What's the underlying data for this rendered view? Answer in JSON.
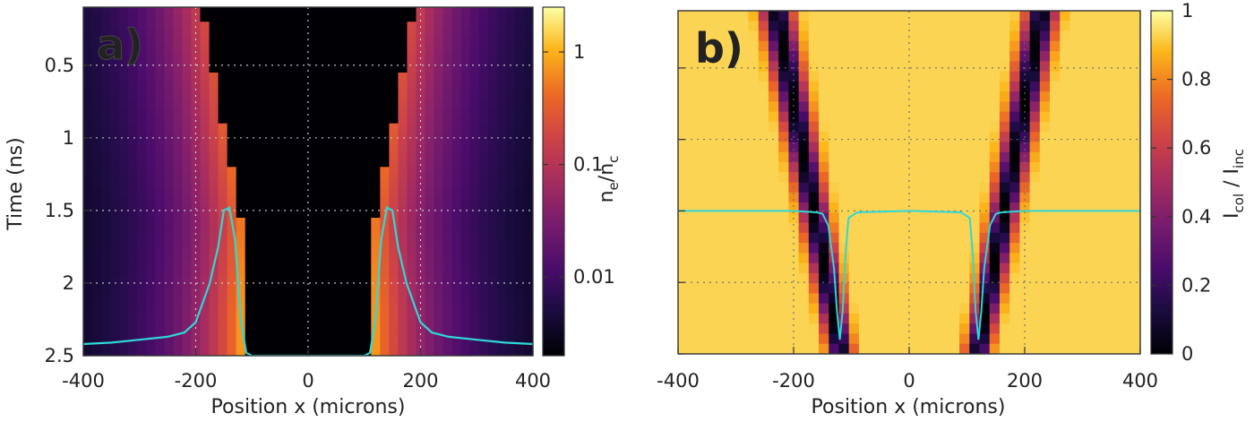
{
  "chart_data": [
    {
      "type": "heatmap",
      "panel_label": "a)",
      "xlabel": "Position x (microns)",
      "ylabel": "Time (ns)",
      "xlim": [
        -400,
        400
      ],
      "ylim": [
        0.1,
        2.5
      ],
      "y_inverted": true,
      "x_ticks": [
        "-400",
        "-200",
        "0",
        "200",
        "400"
      ],
      "x_tick_values": [
        -400,
        -200,
        0,
        200,
        400
      ],
      "y_ticks": [
        "0.5",
        "1",
        "1.5",
        "2",
        "2.5"
      ],
      "y_tick_values": [
        0.5,
        1,
        1.5,
        2,
        2.5
      ],
      "grid": true,
      "colorbar": {
        "label_main": "n",
        "label_sub1": "e",
        "label_mid": "/n",
        "label_sub2": "c",
        "scale": "log",
        "range": [
          0.002,
          2.5
        ],
        "ticks": [
          "1",
          "0.1",
          "0.01"
        ],
        "tick_values": [
          1,
          0.1,
          0.01
        ],
        "colormap": "inferno"
      },
      "front_x_at_t01": 190,
      "front_x_at_t16": 118,
      "line_series": {
        "color": "#2ed8d8",
        "x": [
          -400,
          -350,
          -300,
          -250,
          -220,
          -200,
          -175,
          -160,
          -150,
          -140,
          -130,
          -120,
          -110,
          -100,
          100,
          110,
          120,
          130,
          140,
          150,
          160,
          175,
          200,
          220,
          250,
          300,
          350,
          400
        ],
        "y": [
          2.42,
          2.41,
          2.39,
          2.37,
          2.34,
          2.27,
          2.0,
          1.75,
          1.5,
          1.48,
          1.7,
          2.25,
          2.48,
          2.5,
          2.5,
          2.48,
          2.25,
          1.7,
          1.48,
          1.5,
          1.75,
          2.0,
          2.27,
          2.34,
          2.37,
          2.39,
          2.41,
          2.42
        ]
      }
    },
    {
      "type": "heatmap",
      "panel_label": "b)",
      "xlabel": "Position x (microns)",
      "ylabel": "",
      "xlim": [
        -400,
        400
      ],
      "ylim": [
        0.1,
        2.5
      ],
      "y_inverted": true,
      "x_ticks": [
        "-400",
        "-200",
        "0",
        "200",
        "400"
      ],
      "x_tick_values": [
        -400,
        -200,
        0,
        200,
        400
      ],
      "grid": true,
      "colorbar": {
        "label_main": "I",
        "label_sub1": "col",
        "label_mid": " / I",
        "label_sub2": "inc",
        "scale": "linear",
        "range": [
          0,
          1
        ],
        "ticks": [
          "1",
          "0.8",
          "0.6",
          "0.4",
          "0.2",
          "0"
        ],
        "tick_values": [
          1,
          0.8,
          0.6,
          0.4,
          0.2,
          0
        ],
        "colormap": "inferno"
      },
      "dark_band_x_at_t01": 230,
      "dark_band_x_at_t25": 118,
      "line_series": {
        "color": "#2ed8d8",
        "x": [
          -400,
          -200,
          -160,
          -150,
          -140,
          -130,
          -125,
          -120,
          -115,
          -110,
          -105,
          -90,
          0,
          90,
          105,
          110,
          115,
          120,
          125,
          130,
          140,
          150,
          160,
          200,
          400
        ],
        "y": [
          1.5,
          1.5,
          1.51,
          1.52,
          1.6,
          1.9,
          2.2,
          2.4,
          2.2,
          1.8,
          1.55,
          1.51,
          1.5,
          1.51,
          1.55,
          1.8,
          2.2,
          2.4,
          2.2,
          1.9,
          1.6,
          1.52,
          1.51,
          1.5,
          1.5
        ]
      }
    }
  ]
}
